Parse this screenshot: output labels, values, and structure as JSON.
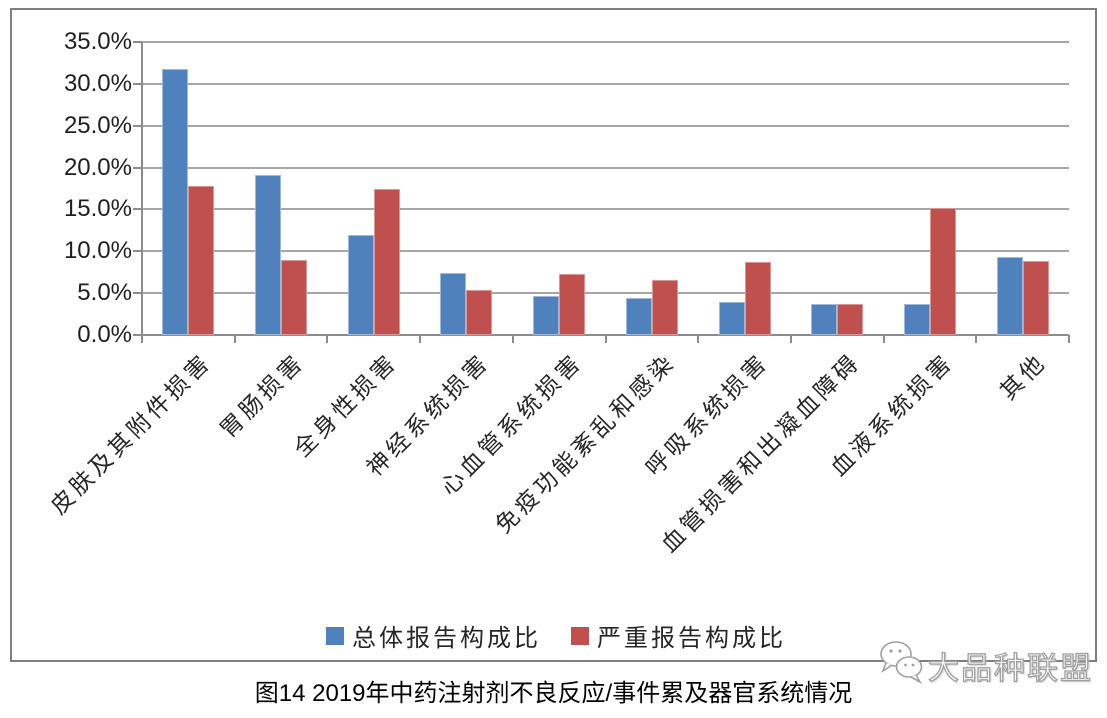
{
  "chart_data": {
    "type": "bar",
    "categories": [
      "皮肤及其附件损害",
      "胃肠损害",
      "全身性损害",
      "神经系统损害",
      "心血管系统损害",
      "免疫功能紊乱和感染",
      "呼吸系统损害",
      "血管损害和出凝血障碍",
      "血液系统损害",
      "其他"
    ],
    "series": [
      {
        "name": "总体报告构成比",
        "color": "#4F81BD",
        "border_color": "#9DB9DC",
        "values": [
          31.8,
          19.1,
          12.0,
          7.4,
          4.7,
          4.4,
          3.9,
          3.7,
          3.7,
          9.3
        ]
      },
      {
        "name": "严重报告构成比",
        "color": "#C0504D",
        "border_color": "#D99795",
        "values": [
          17.8,
          8.9,
          17.5,
          5.4,
          7.3,
          6.6,
          8.7,
          3.7,
          15.2,
          8.8
        ]
      }
    ],
    "ylim": [
      0,
      35
    ],
    "ytick_step": 5,
    "ytick_labels": [
      "0.0%",
      "5.0%",
      "10.0%",
      "15.0%",
      "20.0%",
      "25.0%",
      "30.0%",
      "35.0%"
    ],
    "value_unit": "%",
    "grid": true,
    "legend_position": "bottom-inside"
  },
  "caption": "图14 2019年中药注射剂不良反应/事件累及器官系统情况",
  "watermark": {
    "text": "大品种联盟",
    "icon": "wechat-icon"
  },
  "colors": {
    "gridline": "#A6A6A6",
    "axis": "#8C8C8C",
    "frame_border": "#7F7F7F",
    "label_text": "#262626"
  }
}
